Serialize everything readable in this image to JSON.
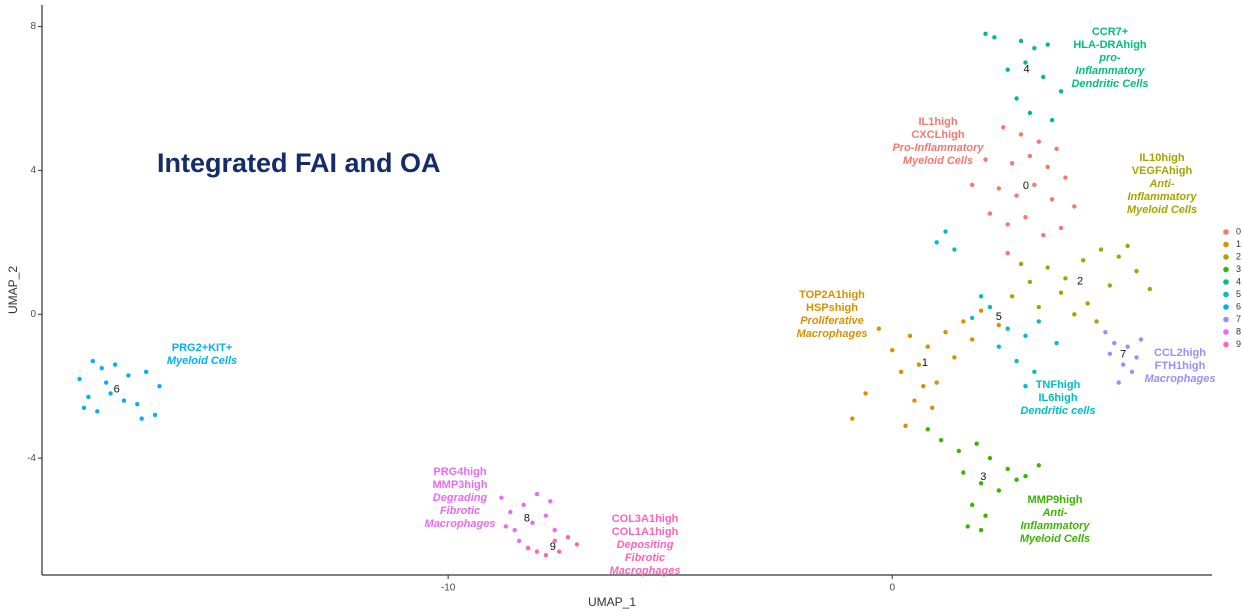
{
  "chart_data": {
    "type": "scatter",
    "title": "Integrated FAI and OA",
    "xlabel": "UMAP_1",
    "ylabel": "UMAP_2",
    "xlim": [
      -19.1,
      7.2
    ],
    "ylim": [
      -7.25,
      8.6
    ],
    "xticks": [
      -10,
      0
    ],
    "yticks": [
      -4,
      0,
      4,
      8
    ],
    "legend": "right",
    "series": [
      {
        "name": "0",
        "color": "#F8766D",
        "x": [
          2.5,
          2.9,
          3.3,
          3.7,
          2.1,
          2.7,
          3.1,
          3.5,
          3.9,
          1.8,
          2.4,
          2.8,
          3.2,
          3.6,
          4.1,
          2.2,
          2.6,
          3.0,
          3.4,
          3.8,
          2.6
        ],
        "y": [
          5.2,
          5.0,
          4.8,
          4.6,
          4.3,
          4.2,
          4.4,
          4.1,
          3.8,
          3.6,
          3.5,
          3.3,
          3.6,
          3.2,
          3.0,
          2.8,
          2.5,
          2.7,
          2.2,
          2.4,
          1.7
        ]
      },
      {
        "name": "1",
        "color": "#D89000",
        "x": [
          -0.3,
          0.0,
          0.4,
          0.8,
          1.2,
          1.6,
          2.0,
          2.4,
          0.2,
          0.6,
          1.0,
          1.4,
          0.5,
          0.9,
          -0.6,
          -0.9,
          1.8,
          0.3,
          0.7
        ],
        "y": [
          -0.4,
          -1.0,
          -0.6,
          -0.9,
          -0.5,
          -0.2,
          0.1,
          -0.3,
          -1.6,
          -1.4,
          -1.9,
          -1.2,
          -2.4,
          -2.6,
          -2.2,
          -2.9,
          -0.7,
          -3.1,
          -2.0
        ]
      },
      {
        "name": "2",
        "color": "#A3A500",
        "x": [
          2.7,
          3.1,
          3.5,
          3.9,
          4.3,
          4.7,
          5.1,
          5.5,
          5.8,
          3.3,
          3.8,
          4.4,
          4.9,
          5.3,
          2.9,
          4.1,
          4.6
        ],
        "y": [
          0.5,
          0.9,
          1.3,
          1.0,
          1.5,
          1.8,
          1.6,
          1.2,
          0.7,
          0.2,
          0.6,
          0.3,
          0.8,
          1.9,
          1.4,
          0.0,
          -0.2
        ]
      },
      {
        "name": "3",
        "color": "#39B600",
        "x": [
          0.8,
          1.1,
          1.5,
          1.9,
          2.2,
          2.6,
          3.0,
          3.3,
          1.6,
          2.0,
          2.4,
          2.8,
          1.8,
          2.1,
          1.7,
          2.0
        ],
        "y": [
          -3.2,
          -3.5,
          -3.8,
          -3.6,
          -4.0,
          -4.3,
          -4.5,
          -4.2,
          -4.4,
          -4.7,
          -4.9,
          -4.6,
          -5.3,
          -5.6,
          -5.9,
          -6.0
        ]
      },
      {
        "name": "4",
        "color": "#00BF7D",
        "x": [
          2.1,
          2.3,
          2.9,
          3.2,
          3.5,
          3.0,
          2.6,
          3.4,
          3.8,
          2.8,
          3.1,
          3.6
        ],
        "y": [
          7.8,
          7.7,
          7.6,
          7.4,
          7.5,
          7.0,
          6.8,
          6.6,
          6.2,
          6.0,
          5.6,
          5.4
        ]
      },
      {
        "name": "5",
        "color": "#00BFC4",
        "x": [
          1.0,
          1.2,
          1.4,
          1.8,
          2.2,
          2.6,
          3.0,
          3.3,
          3.7,
          2.8,
          3.2,
          2.4,
          3.0,
          2.0
        ],
        "y": [
          2.0,
          2.3,
          1.8,
          -0.1,
          0.2,
          -0.4,
          -0.6,
          -0.2,
          -0.8,
          -1.3,
          -1.6,
          -0.9,
          -2.0,
          0.5
        ]
      },
      {
        "name": "6",
        "color": "#00B0F6",
        "x": [
          -18.3,
          -18.1,
          -17.8,
          -17.5,
          -17.2,
          -16.8,
          -16.5,
          -18.2,
          -17.9,
          -17.6,
          -17.0,
          -16.6,
          -18.0,
          -17.3,
          -16.9,
          -17.7
        ],
        "y": [
          -1.8,
          -2.3,
          -1.5,
          -1.4,
          -1.7,
          -1.6,
          -2.0,
          -2.6,
          -2.7,
          -2.2,
          -2.5,
          -2.8,
          -1.3,
          -2.4,
          -2.9,
          -1.9
        ]
      },
      {
        "name": "7",
        "color": "#9590FF",
        "x": [
          4.8,
          5.0,
          5.3,
          5.5,
          5.6,
          5.2,
          4.9,
          5.4,
          5.1
        ],
        "y": [
          -0.5,
          -0.8,
          -0.9,
          -1.2,
          -0.7,
          -1.4,
          -1.1,
          -1.6,
          -1.9
        ]
      },
      {
        "name": "8",
        "color": "#E76BF3",
        "x": [
          -8.8,
          -8.6,
          -8.3,
          -8.0,
          -7.7,
          -8.5,
          -8.1,
          -7.8,
          -8.4,
          -8.2,
          -7.6,
          -8.7
        ],
        "y": [
          -5.1,
          -5.5,
          -5.3,
          -5.0,
          -5.2,
          -6.0,
          -5.8,
          -5.6,
          -6.3,
          -6.5,
          -6.0,
          -5.9
        ]
      },
      {
        "name": "9",
        "color": "#FF62BC",
        "x": [
          -8.2,
          -8.0,
          -7.6,
          -7.3,
          -7.1,
          -7.5,
          -7.8
        ],
        "y": [
          -6.5,
          -6.6,
          -6.3,
          -6.2,
          -6.4,
          -6.6,
          -6.7
        ]
      }
    ],
    "annotations": [
      {
        "lines": [
          "CCR7+",
          "HLA-DRAhigh",
          "pro-",
          "Inflammatory",
          "Dendritic Cells"
        ]
      },
      {
        "lines": [
          "IL1high",
          "CXCLhigh",
          "Pro-Inflammatory",
          "Myeloid Cells"
        ]
      },
      {
        "lines": [
          "IL10high",
          "VEGFAhigh",
          "Anti-",
          "Inflammatory",
          "Myeloid Cells"
        ]
      },
      {
        "lines": [
          "TOP2A1high",
          "HSPshigh",
          "Proliferative",
          "Macrophages"
        ]
      },
      {
        "lines": [
          "CCL2high",
          "FTH1high",
          "Macrophages"
        ]
      },
      {
        "lines": [
          "TNFhigh",
          "IL6high",
          "Dendritic cells"
        ]
      },
      {
        "lines": [
          "MMP9high",
          "Anti-",
          "Inflammatory",
          "Myeloid Cells"
        ]
      },
      {
        "lines": [
          "PRG2+KIT+",
          "Myeloid Cells"
        ]
      },
      {
        "lines": [
          "PRG4high",
          "MMP3high",
          "Degrading",
          "Fibrotic",
          "Macrophages"
        ]
      },
      {
        "lines": [
          "COL3A1high",
          "COL1A1high",
          "Depositing",
          "Fibrotic",
          "Macrophages"
        ]
      }
    ]
  }
}
